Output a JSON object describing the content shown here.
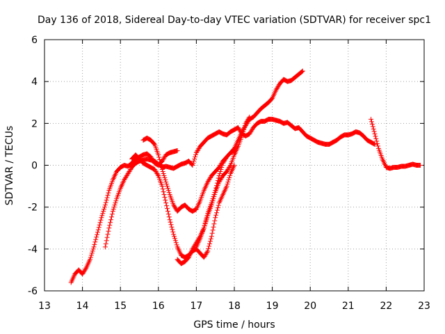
{
  "chart_data": {
    "type": "scatter",
    "title": "Day 136 of 2018, Sidereal Day-to-day VTEC variation (SDTVAR) for receiver spc1",
    "xlabel": "GPS time / hours",
    "ylabel": "SDTVAR / TECUs",
    "xlim": [
      13,
      23
    ],
    "ylim": [
      -6,
      6
    ],
    "xticks": [
      "13",
      "14",
      "15",
      "16",
      "17",
      "18",
      "19",
      "20",
      "21",
      "22",
      "23"
    ],
    "yticks": [
      "-6",
      "-4",
      "-2",
      "0",
      "2",
      "4",
      "6"
    ],
    "grid": true,
    "marker": "plus",
    "color": "#ff0000",
    "series": [
      {
        "x": [
          13.7,
          13.8,
          13.9,
          14.0,
          14.1,
          14.2,
          14.3,
          14.4,
          14.5,
          14.6,
          14.7,
          14.8,
          14.9,
          15.0,
          15.1,
          15.2,
          15.3,
          15.4,
          15.5,
          15.6,
          15.7,
          15.8,
          15.9,
          16.0,
          16.1,
          16.2,
          16.3,
          16.4,
          16.5
        ],
        "y": [
          -5.6,
          -5.2,
          -5.0,
          -5.2,
          -4.9,
          -4.5,
          -3.9,
          -3.2,
          -2.5,
          -1.9,
          -1.2,
          -0.7,
          -0.3,
          -0.1,
          0.0,
          -0.05,
          0.1,
          0.3,
          0.4,
          0.5,
          0.55,
          0.4,
          0.1,
          0.0,
          0.2,
          0.5,
          0.6,
          0.65,
          0.7
        ]
      },
      {
        "x": [
          14.6,
          14.7,
          14.8,
          14.9,
          15.0,
          15.1,
          15.2,
          15.3,
          15.4,
          15.5,
          15.6,
          15.7,
          15.8,
          15.9,
          16.0,
          16.1,
          16.2,
          16.3,
          16.4,
          16.5,
          16.6,
          16.7,
          16.8,
          16.9,
          17.0,
          17.1,
          17.2,
          17.3,
          17.4,
          17.5,
          17.6,
          17.7,
          17.8,
          17.9,
          18.0,
          18.1,
          18.2,
          18.3,
          18.4,
          18.5,
          18.6,
          18.7,
          18.8,
          18.9,
          19.0,
          19.1,
          19.2,
          19.3,
          19.4,
          19.5,
          19.6,
          19.7,
          19.8,
          19.9,
          20.0,
          20.1,
          20.2,
          20.3,
          20.4,
          20.5,
          20.6,
          20.7,
          20.8,
          20.9,
          21.0,
          21.1,
          21.2,
          21.3,
          21.4,
          21.5,
          21.6,
          21.7
        ],
        "y": [
          -3.9,
          -3.0,
          -2.2,
          -1.6,
          -1.1,
          -0.7,
          -0.4,
          -0.1,
          0.1,
          0.2,
          0.25,
          0.3,
          0.25,
          0.2,
          0.05,
          -0.1,
          -0.05,
          -0.1,
          -0.15,
          -0.05,
          0.05,
          0.1,
          0.2,
          0.0,
          0.6,
          0.9,
          1.1,
          1.3,
          1.4,
          1.5,
          1.6,
          1.5,
          1.45,
          1.6,
          1.7,
          1.8,
          1.5,
          1.4,
          1.5,
          1.8,
          2.0,
          2.1,
          2.1,
          2.2,
          2.2,
          2.15,
          2.1,
          2.0,
          2.05,
          1.9,
          1.75,
          1.8,
          1.6,
          1.4,
          1.3,
          1.2,
          1.1,
          1.05,
          1.0,
          1.0,
          1.1,
          1.2,
          1.35,
          1.45,
          1.45,
          1.5,
          1.6,
          1.55,
          1.4,
          1.2,
          1.1,
          1.0
        ]
      },
      {
        "x": [
          15.6,
          15.7,
          15.8,
          15.9,
          16.0,
          16.1,
          16.2,
          16.3,
          16.4,
          16.5,
          16.6,
          16.7,
          16.8,
          16.9,
          17.0,
          17.1,
          17.2,
          17.3,
          17.4,
          17.5,
          17.6,
          17.7,
          17.8,
          17.9,
          18.0,
          18.1,
          18.2,
          18.3,
          18.4,
          18.5,
          18.6,
          18.7,
          18.8,
          18.9,
          19.0,
          19.1,
          19.2,
          19.3,
          19.4,
          19.5,
          19.6,
          19.7,
          19.8
        ],
        "y": [
          1.2,
          1.3,
          1.2,
          1.0,
          0.5,
          -0.2,
          -0.8,
          -1.4,
          -1.9,
          -2.2,
          -2.0,
          -1.9,
          -2.1,
          -2.2,
          -2.1,
          -1.7,
          -1.2,
          -0.8,
          -0.5,
          -0.3,
          -0.1,
          0.2,
          0.4,
          0.6,
          0.8,
          1.2,
          1.6,
          1.9,
          2.2,
          2.3,
          2.5,
          2.7,
          2.85,
          3.0,
          3.2,
          3.6,
          3.9,
          4.1,
          4.0,
          4.05,
          4.2,
          4.35,
          4.5
        ]
      },
      {
        "x": [
          15.3,
          15.4,
          15.5,
          15.6,
          15.7,
          15.8,
          15.9,
          16.0,
          16.1,
          16.2,
          16.3,
          16.4,
          16.5,
          16.6,
          16.7,
          16.8,
          16.9,
          17.0,
          17.1,
          17.2,
          17.3,
          17.4,
          17.5,
          17.6,
          17.7,
          17.8,
          17.9,
          18.0
        ],
        "y": [
          0.3,
          0.5,
          0.3,
          0.1,
          0.0,
          -0.1,
          -0.2,
          -0.5,
          -1.0,
          -1.8,
          -2.6,
          -3.3,
          -3.9,
          -4.3,
          -4.4,
          -4.3,
          -4.1,
          -4.0,
          -4.2,
          -4.4,
          -4.1,
          -3.4,
          -2.5,
          -1.8,
          -1.4,
          -1.0,
          -0.4,
          0.0
        ]
      },
      {
        "x": [
          16.5,
          16.6,
          16.7,
          16.8,
          16.9,
          17.0,
          17.1,
          17.2,
          17.3,
          17.4,
          17.5,
          17.6,
          17.7,
          17.8,
          17.9,
          18.0,
          18.1,
          18.2,
          18.3,
          18.4
        ],
        "y": [
          -4.5,
          -4.7,
          -4.6,
          -4.4,
          -4.0,
          -3.7,
          -3.4,
          -3.0,
          -2.4,
          -1.9,
          -1.3,
          -0.8,
          -0.5,
          -0.3,
          0.0,
          0.5,
          0.9,
          1.4,
          2.0,
          2.3
        ]
      },
      {
        "x": [
          17.0,
          17.1,
          17.2,
          17.3,
          17.4,
          17.5,
          17.6,
          17.7,
          17.8,
          17.9,
          18.0
        ],
        "y": [
          -3.9,
          -3.5,
          -3.0,
          -2.3,
          -1.8,
          -1.2,
          -0.5,
          0.1,
          0.4,
          0.6,
          0.7
        ]
      },
      {
        "x": [
          21.6,
          21.7,
          21.8,
          21.9,
          22.0,
          22.1,
          22.2,
          22.3,
          22.4,
          22.5,
          22.6,
          22.7,
          22.8,
          22.9
        ],
        "y": [
          2.2,
          1.5,
          0.8,
          0.3,
          -0.1,
          -0.15,
          -0.1,
          -0.1,
          -0.05,
          -0.05,
          0.0,
          0.05,
          0.0,
          0.0
        ]
      }
    ]
  }
}
